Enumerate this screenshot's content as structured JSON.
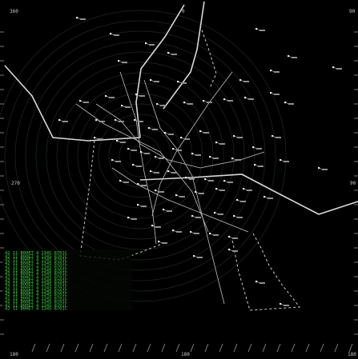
{
  "display": {
    "background": "#000000",
    "ring_color": "#1e2a1e",
    "track_color": "#e8e8e8",
    "airway_color": "#d8d8d8",
    "boundary_color": "#cfcfcf",
    "datablock_color": "#3fcf3f"
  },
  "bearings": {
    "top_left": "360",
    "top_center": "0",
    "top_right": "90",
    "left": "270",
    "right": "90",
    "bottom_left": "180",
    "bottom_center": "180",
    "bottom_right": "180"
  },
  "datablock": {
    "lines": [
      "42 11 B00ET   4 1345 8701C",
      "42 11 B00ET   4 1345 8701C",
      "42 11 B00ET   4 1345 8701C",
      "42 11 B00ET   4 1345 8701C",
      "42 11 B00ET   4 1345 8701C",
      "42 11 B00ET   4 1345 8701C",
      "42 11 B00ET   4 1345 8701C",
      "42 11 B00ET   4 1345 8701C",
      "42 11 B00ET   4 1345 8701C",
      "42 11 B00ET   4 1345 8701C",
      "42 11 B00ET   4 1345 8701C",
      "42 11 B00ET   4 1345 8701C",
      "42 11 B00ET   4 1345 8701C",
      "42 11 B00ET   4 1345 8701C",
      "42 11 B00ET   4 1345 8701C",
      "42 11 B00ET   4 1345 8701C",
      "42 11 B00ET   4 1345 8701C"
    ]
  }
}
